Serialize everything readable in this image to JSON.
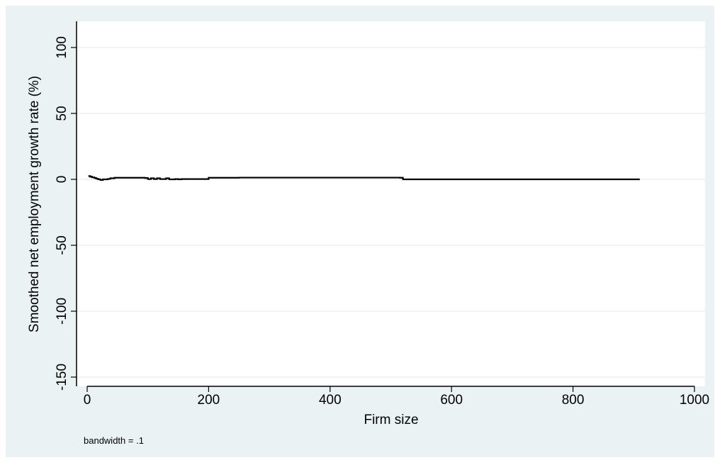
{
  "chart_data": {
    "type": "line",
    "title": "",
    "xlabel": "Firm size",
    "ylabel": "Smoothed net employment growth rate (%)",
    "note": "bandwidth = .1",
    "xlim": [
      0,
      1000
    ],
    "ylim": [
      -150,
      120
    ],
    "xticks": [
      0,
      200,
      400,
      600,
      800,
      1000
    ],
    "xtick_labels": [
      "0",
      "200",
      "400",
      "600",
      "800",
      "1000"
    ],
    "yticks": [
      -150,
      -100,
      -50,
      0,
      50,
      100
    ],
    "ytick_labels": [
      "-150",
      "-100",
      "-50",
      "0",
      "50",
      "100"
    ],
    "grid": true,
    "colors": {
      "background": "#eaf2f3",
      "plot": "#ffffff",
      "line": "#000000",
      "grid": "#eaf2f3"
    },
    "series": [
      {
        "x": [
          2,
          5,
          8,
          12,
          15,
          18,
          22,
          26,
          30,
          34,
          38,
          45,
          60,
          80,
          95,
          100,
          105,
          110,
          115,
          120,
          130,
          135,
          140,
          145,
          150,
          155,
          160,
          200,
          250,
          300,
          350,
          400,
          450,
          500,
          515,
          520,
          550,
          600,
          650,
          700,
          750,
          800,
          850,
          900,
          910
        ],
        "y": [
          2.5,
          2.0,
          1.5,
          1.0,
          0.5,
          0.0,
          -0.5,
          0.0,
          0.0,
          0.3,
          0.8,
          1.2,
          1.2,
          1.2,
          1.0,
          0.2,
          0.8,
          0.2,
          0.8,
          0.2,
          0.8,
          0.0,
          0.0,
          0.2,
          0.0,
          0.2,
          0.2,
          1.2,
          1.3,
          1.3,
          1.3,
          1.3,
          1.3,
          1.3,
          1.2,
          0.0,
          0.0,
          0.0,
          0.0,
          0.0,
          0.0,
          0.0,
          0.0,
          0.0,
          0.0
        ]
      }
    ]
  }
}
